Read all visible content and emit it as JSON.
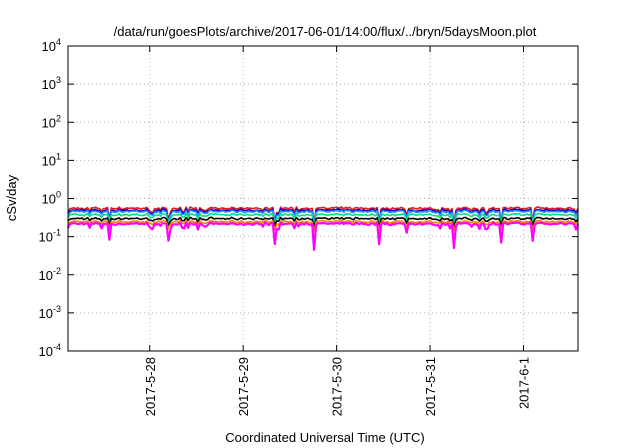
{
  "chart_data": {
    "type": "line",
    "title": "/data/run/goesPlots/archive/2017-06-01/14:00/flux/../bryn/5daysMoon.plot",
    "xlabel": "Coordinated Universal Time (UTC)",
    "ylabel": "cSv/day",
    "y_scale": "log",
    "ylim": [
      0.0001,
      10000
    ],
    "y_ticks": [
      {
        "value": 0.0001,
        "base": "10",
        "exp": "-4"
      },
      {
        "value": 0.001,
        "base": "10",
        "exp": "-3"
      },
      {
        "value": 0.01,
        "base": "10",
        "exp": "-2"
      },
      {
        "value": 0.1,
        "base": "10",
        "exp": "-1"
      },
      {
        "value": 1,
        "base": "10",
        "exp": "0"
      },
      {
        "value": 10,
        "base": "10",
        "exp": "1"
      },
      {
        "value": 100,
        "base": "10",
        "exp": "2"
      },
      {
        "value": 1000,
        "base": "10",
        "exp": "3"
      },
      {
        "value": 10000,
        "base": "10",
        "exp": "4"
      }
    ],
    "x_range_days": [
      "2017-05-27 03:00",
      "2017-06-01 14:00"
    ],
    "x_ticks": [
      "2017-5-28",
      "2017-5-29",
      "2017-5-30",
      "2017-5-31",
      "2017-6-1"
    ],
    "grid": true,
    "series": [
      {
        "color": "#e41a1c",
        "base": 0.56,
        "dip": 0.45
      },
      {
        "color": "#0000cc",
        "base": 0.5,
        "dip": 0.42
      },
      {
        "color": "#1e90ff",
        "base": 0.46,
        "dip": 0.4
      },
      {
        "color": "#00dd88",
        "base": 0.38,
        "dip": 0.35
      },
      {
        "color": "#000000",
        "base": 0.3,
        "dip": 0.3
      },
      {
        "color": "#ff7f00",
        "base": 0.25,
        "dip": 0.3
      },
      {
        "color": "#ff00ff",
        "base": 0.22,
        "dip": 0.55
      }
    ]
  }
}
